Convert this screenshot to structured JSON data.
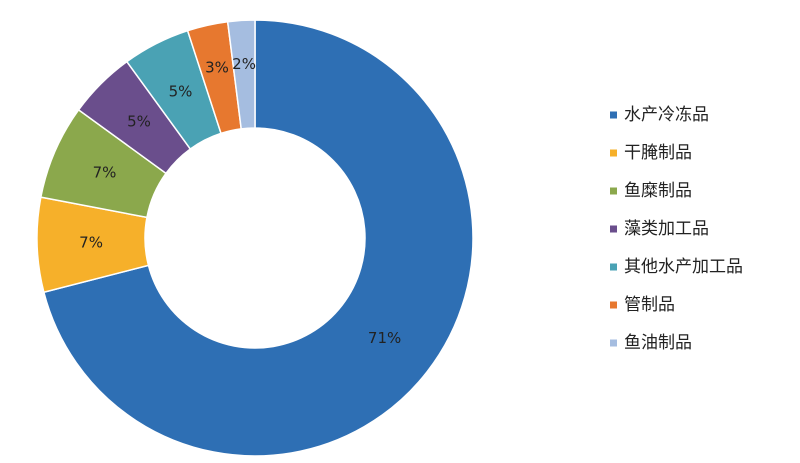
{
  "chart_data": {
    "type": "donut",
    "categories": [
      "水产冷冻品",
      "干腌制品",
      "鱼糜制品",
      "藻类加工品",
      "其他水产加工品",
      "管制品",
      "鱼油制品"
    ],
    "values": [
      71,
      7,
      7,
      5,
      5,
      3,
      2
    ],
    "value_labels": [
      "71%",
      "7%",
      "7%",
      "5%",
      "5%",
      "3%",
      "2%"
    ],
    "colors": [
      "#2e6fb4",
      "#f6b02a",
      "#8ba84c",
      "#6a4e8c",
      "#4aa2b4",
      "#e7782f",
      "#a5bde0"
    ],
    "legend": "right"
  }
}
